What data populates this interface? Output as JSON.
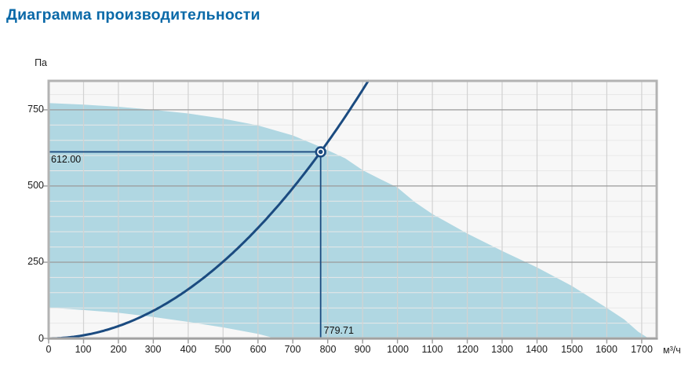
{
  "header": {
    "title": "Диаграмма производительности"
  },
  "axis_units": {
    "y_unit": "Па",
    "x_unit": "м³/ч"
  },
  "colors": {
    "title": "#0a69a8",
    "curve": "#1b4b80",
    "envelope_fill": "#b0d7e2",
    "plot_background": "#f7f7f7",
    "border": "#b3b3b3",
    "grid_minor": "#e8e8e8",
    "grid_vertical": "#d2d2d2",
    "grid_major": "#9a9a9a",
    "tick": "#9a9a9a",
    "text": "#1a1a1a"
  },
  "chart_data": {
    "type": "area",
    "title": "Диаграмма производительности",
    "xlabel": "м³/ч",
    "ylabel": "Па",
    "xlim": [
      0,
      1743
    ],
    "ylim": [
      0,
      845
    ],
    "x_ticks": [
      0,
      100,
      200,
      300,
      400,
      500,
      600,
      700,
      800,
      900,
      1000,
      1100,
      1200,
      1300,
      1400,
      1500,
      1600,
      1700
    ],
    "y_ticks": [
      0,
      250,
      500,
      750
    ],
    "y_minor_step": 50,
    "x_grid_step": 100,
    "grid": true,
    "legend_position": "none",
    "series": [
      {
        "name": "fan-operating-envelope",
        "type": "area-band",
        "fill": "#b0d7e2",
        "upper": [
          [
            0,
            772
          ],
          [
            100,
            767
          ],
          [
            200,
            760
          ],
          [
            300,
            750
          ],
          [
            400,
            738
          ],
          [
            500,
            721
          ],
          [
            600,
            699
          ],
          [
            700,
            666
          ],
          [
            780,
            628
          ],
          [
            850,
            591
          ],
          [
            900,
            552
          ],
          [
            950,
            523
          ],
          [
            1000,
            495
          ],
          [
            1050,
            447
          ],
          [
            1100,
            408
          ],
          [
            1150,
            376
          ],
          [
            1200,
            344
          ],
          [
            1300,
            287
          ],
          [
            1400,
            233
          ],
          [
            1500,
            172
          ],
          [
            1600,
            100
          ],
          [
            1650,
            62
          ],
          [
            1690,
            22
          ],
          [
            1720,
            0
          ]
        ],
        "lower": [
          [
            0,
            101
          ],
          [
            100,
            93
          ],
          [
            200,
            84
          ],
          [
            300,
            70
          ],
          [
            400,
            54
          ],
          [
            500,
            36
          ],
          [
            600,
            15
          ],
          [
            650,
            0
          ]
        ]
      },
      {
        "name": "system-resistance-curve",
        "type": "quadratic-through-origin",
        "color": "#1b4b80",
        "passes_through": {
          "q": 779.71,
          "p": 612.0
        },
        "q_start": 0,
        "clip_at_ylim": true
      }
    ],
    "operating_point": {
      "flow_m3h": 779.71,
      "pressure_pa": 612.0,
      "flow_label": "779.71",
      "pressure_label": "612.00",
      "marker": "ring-dot",
      "color": "#1b4b80",
      "crosshair": true
    }
  }
}
